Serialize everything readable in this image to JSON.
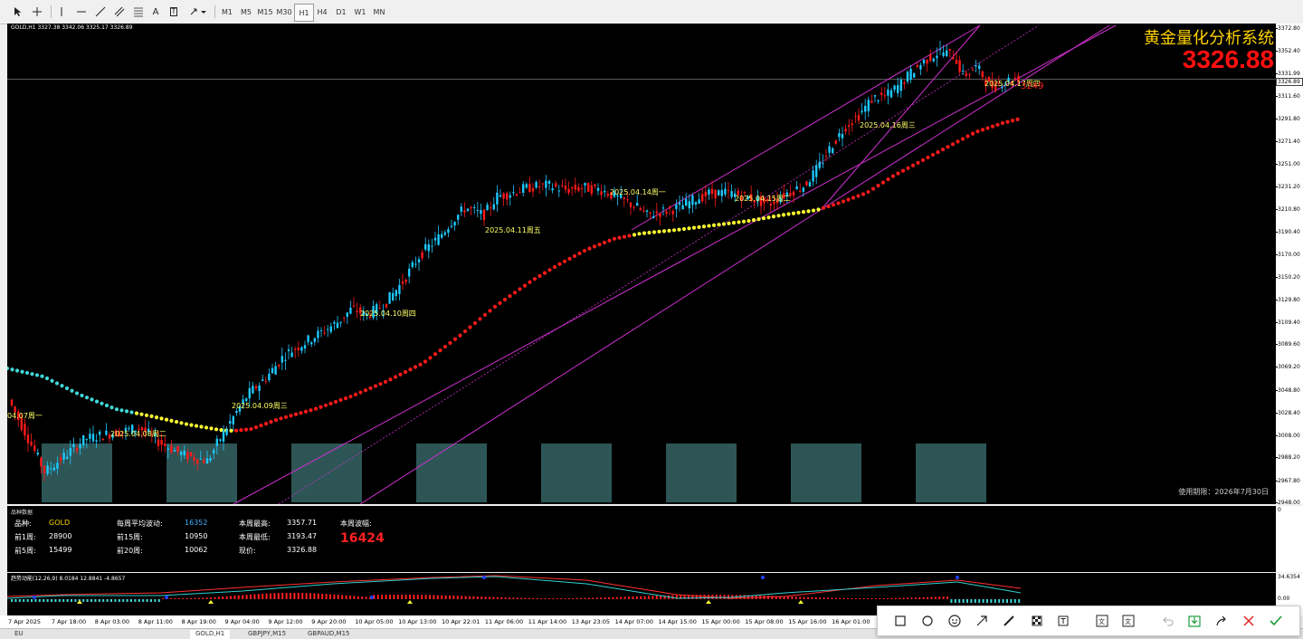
{
  "toolbar": {
    "timeframes": [
      "M1",
      "M5",
      "M15",
      "M30",
      "H1",
      "H4",
      "D1",
      "W1",
      "MN"
    ],
    "active_timeframe": "H1",
    "text_tool": "A",
    "text_label_tool": "T"
  },
  "chart": {
    "symbol_line": "GOLD,H1  3327.38 3342.06 3325.17 3326.89",
    "title": "黄金量化分析系统",
    "big_price": "3326.88",
    "current_price_tag": "3326.89",
    "expiry": "使用期限：2026年7月30日",
    "price_ticks": [
      "3372.80",
      "3352.40",
      "3331.99",
      "3311.60",
      "3291.80",
      "3271.40",
      "3251.00",
      "3231.20",
      "3210.80",
      "3190.40",
      "3170.00",
      "3150.20",
      "3129.80",
      "3109.40",
      "3089.60",
      "3069.20",
      "3048.80",
      "3028.40",
      "3008.00",
      "2988.20",
      "2967.80",
      "2948.00"
    ],
    "date_labels": [
      {
        "text": "04.07周一"
      },
      {
        "text": "2025.04.08周二"
      },
      {
        "text": "2025.04.09周三"
      },
      {
        "text": "2025.04.10周四"
      },
      {
        "text": "2025.04.11周五"
      },
      {
        "text": "2025.04.14周一"
      },
      {
        "text": "2025.04.15周二"
      },
      {
        "text": "2025.04.16周三"
      },
      {
        "text": "2025.04.17周四"
      }
    ],
    "red_tag": "3249"
  },
  "stats": {
    "panel_name": "品种数据",
    "variety_label": "品种:",
    "variety_value": "GOLD",
    "avg_label": "每周平均波动:",
    "avg_value": "16352",
    "high_label": "本周最高:",
    "high_value": "3357.71",
    "range_label": "本周波幅:",
    "range_value": "16424",
    "w1_label": "前1周:",
    "w1_value": "28900",
    "w15_label": "前15周:",
    "w15_value": "10950",
    "low_label": "本周最低:",
    "low_value": "3193.47",
    "w5_label": "前5周:",
    "w5_value": "15499",
    "w20_label": "前20周:",
    "w20_value": "10062",
    "now_label": "现价:",
    "now_value": "3326.88",
    "scale_top": "0"
  },
  "oscillator": {
    "name": "趋势动能(12,26,9) 8.0184 12.8841 -4.8657",
    "scale_top": "34.6354",
    "scale_zero": "0.00"
  },
  "time_axis": [
    "7 Apr 2025",
    "7 Apr 18:00",
    "8 Apr 03:00",
    "8 Apr 11:00",
    "8 Apr 19:00",
    "9 Apr 04:00",
    "9 Apr 12:00",
    "9 Apr 20:00",
    "10 Apr 05:00",
    "10 Apr 13:00",
    "10 Apr 22:01",
    "11 Apr 06:00",
    "11 Apr 14:00",
    "13 Apr 23:05",
    "14 Apr 07:00",
    "14 Apr 15:00",
    "15 Apr 00:00",
    "15 Apr 08:00",
    "15 Apr 16:00",
    "16 Apr 01:00"
  ],
  "tabs": [
    "EU",
    "GOLD,H1",
    "GBPJPY,M15",
    "GBPAUD,M15"
  ],
  "snip_tools": [
    "rectangle-icon",
    "circle-icon",
    "emoji-icon",
    "arrow-icon",
    "pen-icon",
    "mosaic-icon",
    "text-icon",
    "ocr-icon",
    "translate-icon",
    "undo-icon",
    "save-icon",
    "share-icon",
    "close-icon",
    "confirm-icon"
  ],
  "colors": {
    "bull": "#1ec8ff",
    "bear": "#ff1a1a",
    "channel": "#d030d0",
    "ma_red": "#ff1a1a",
    "ma_yellow": "#ffff33",
    "ma_cyan": "#40d8d8",
    "box": "#2f5a5a"
  }
}
